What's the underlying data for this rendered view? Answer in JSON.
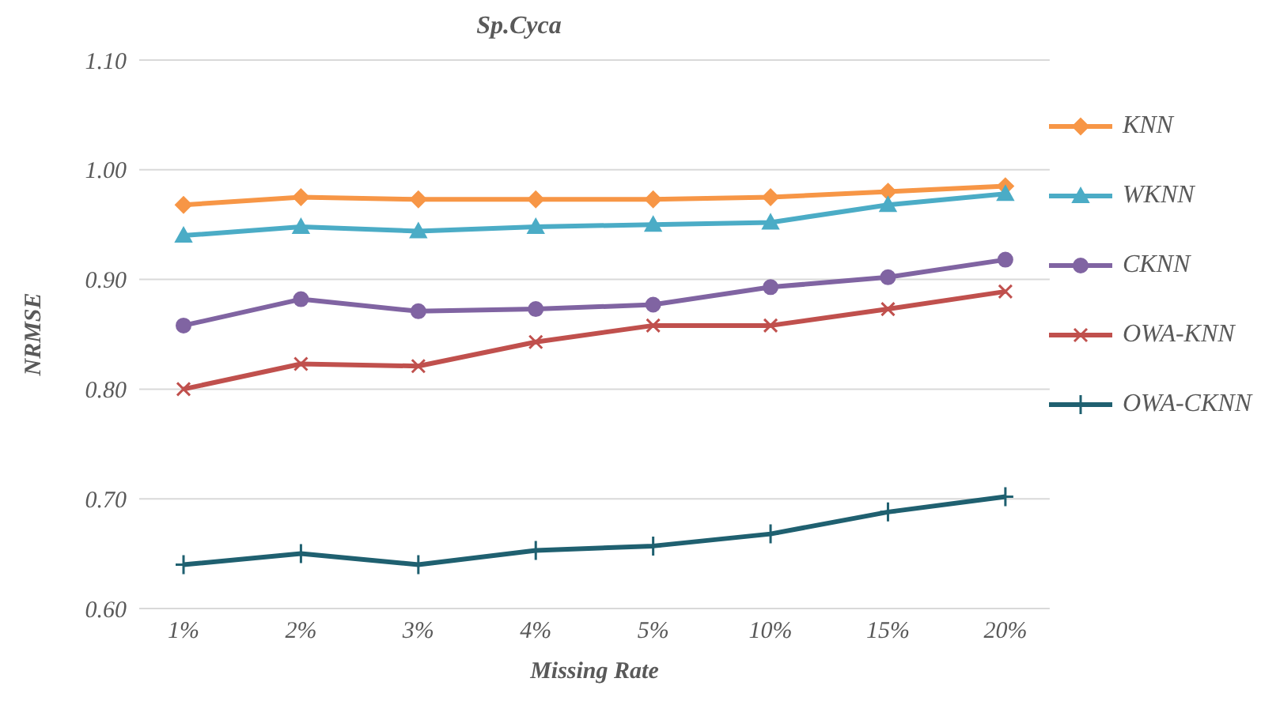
{
  "chart_data": {
    "type": "line",
    "title": "Sp.Cyca",
    "xlabel": "Missing Rate",
    "ylabel": "NRMSE",
    "categories": [
      "1%",
      "2%",
      "3%",
      "4%",
      "5%",
      "10%",
      "15%",
      "20%"
    ],
    "series": [
      {
        "name": "KNN",
        "color": "#f79646",
        "marker": "diamond",
        "values": [
          0.968,
          0.975,
          0.973,
          0.973,
          0.973,
          0.975,
          0.98,
          0.985
        ]
      },
      {
        "name": "WKNN",
        "color": "#4bacc6",
        "marker": "triangle",
        "values": [
          0.94,
          0.948,
          0.944,
          0.948,
          0.95,
          0.952,
          0.968,
          0.978
        ]
      },
      {
        "name": "CKNN",
        "color": "#8064a2",
        "marker": "circle",
        "values": [
          0.858,
          0.882,
          0.871,
          0.873,
          0.877,
          0.893,
          0.902,
          0.918
        ]
      },
      {
        "name": "OWA-KNN",
        "color": "#c0504d",
        "marker": "cross",
        "values": [
          0.8,
          0.823,
          0.821,
          0.843,
          0.858,
          0.858,
          0.873,
          0.889
        ]
      },
      {
        "name": "OWA-CKNN",
        "color": "#1f6070",
        "marker": "plus",
        "values": [
          0.64,
          0.65,
          0.64,
          0.653,
          0.657,
          0.668,
          0.688,
          0.702
        ]
      }
    ],
    "ylim": [
      0.6,
      1.1
    ],
    "yticks": [
      {
        "value": 0.6,
        "label": "0.60"
      },
      {
        "value": 0.7,
        "label": "0.70"
      },
      {
        "value": 0.8,
        "label": "0.80"
      },
      {
        "value": 0.9,
        "label": "0.90"
      },
      {
        "value": 1.0,
        "label": "1.00"
      },
      {
        "value": 1.1,
        "label": "1.10"
      }
    ],
    "grid": "y",
    "legend": "right",
    "line_style": "solid"
  }
}
